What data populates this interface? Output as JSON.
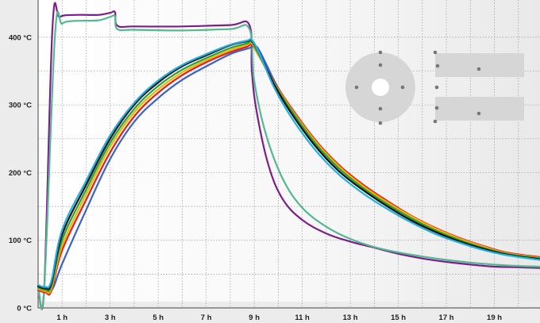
{
  "chart_data": {
    "type": "line",
    "title": "",
    "xlabel": "",
    "ylabel": "",
    "xlim": [
      0.0,
      20.9
    ],
    "ylim": [
      0,
      455
    ],
    "grid": true,
    "x_tick_labels": [
      {
        "x": 1,
        "label": "1 h"
      },
      {
        "x": 3,
        "label": "3 h"
      },
      {
        "x": 5,
        "label": "5 h"
      },
      {
        "x": 7,
        "label": "7 h"
      },
      {
        "x": 9,
        "label": "9 h"
      },
      {
        "x": 11,
        "label": "11 h"
      },
      {
        "x": 13,
        "label": "13 h"
      },
      {
        "x": 15,
        "label": "15 h"
      },
      {
        "x": 17,
        "label": "17 h"
      },
      {
        "x": 19,
        "label": "19 h"
      }
    ],
    "x_gridlines": [
      0,
      1,
      2,
      3,
      4,
      5,
      6,
      7,
      8,
      9,
      10,
      11,
      12,
      13,
      14,
      15,
      16,
      17,
      18,
      19,
      20
    ],
    "y_tick_labels": [
      {
        "y": 0,
        "label": "0 °C"
      },
      {
        "y": 100,
        "label": "100 °C"
      },
      {
        "y": 200,
        "label": "200 °C"
      },
      {
        "y": 300,
        "label": "300 °C"
      },
      {
        "y": 400,
        "label": "400 °C"
      }
    ],
    "y_gridlines": [
      0,
      50,
      100,
      150,
      200,
      250,
      300,
      350,
      400
    ],
    "series": [
      {
        "color": "#7b1f8c",
        "points": [
          [
            0,
            32
          ],
          [
            0.25,
            28
          ],
          [
            0.6,
            415
          ],
          [
            0.9,
            430
          ],
          [
            1.5,
            433
          ],
          [
            2.5,
            433
          ],
          [
            3.0,
            436
          ],
          [
            3.2,
            437
          ],
          [
            3.3,
            417
          ],
          [
            4,
            416
          ],
          [
            6,
            416
          ],
          [
            8,
            418
          ],
          [
            8.8,
            418
          ],
          [
            8.9,
            350
          ],
          [
            9.1,
            290
          ],
          [
            9.6,
            210
          ],
          [
            10.2,
            160
          ],
          [
            11,
            130
          ],
          [
            12,
            110
          ],
          [
            13,
            98
          ],
          [
            14,
            89
          ],
          [
            15,
            80
          ],
          [
            16,
            73
          ],
          [
            17,
            68
          ],
          [
            18,
            64
          ],
          [
            19,
            61
          ],
          [
            20,
            60
          ],
          [
            20.9,
            59
          ]
        ]
      },
      {
        "color": "#55b890",
        "points": [
          [
            0,
            30
          ],
          [
            0.25,
            28
          ],
          [
            0.7,
            402
          ],
          [
            1.0,
            420
          ],
          [
            1.5,
            424
          ],
          [
            2.5,
            425
          ],
          [
            3.0,
            430
          ],
          [
            3.2,
            431
          ],
          [
            3.3,
            412
          ],
          [
            4,
            411
          ],
          [
            6,
            410
          ],
          [
            8,
            412
          ],
          [
            8.8,
            412
          ],
          [
            9.0,
            335
          ],
          [
            9.5,
            255
          ],
          [
            10.2,
            190
          ],
          [
            11,
            148
          ],
          [
            12,
            120
          ],
          [
            13,
            102
          ],
          [
            14,
            90
          ],
          [
            15,
            82
          ],
          [
            16,
            76
          ],
          [
            17,
            71
          ],
          [
            18,
            67
          ],
          [
            19,
            64
          ],
          [
            20,
            62
          ],
          [
            20.9,
            61
          ]
        ]
      },
      {
        "color": "#3a5fcf",
        "points": [
          [
            0,
            28
          ],
          [
            0.3,
            24
          ],
          [
            0.6,
            28
          ],
          [
            1,
            65
          ],
          [
            2,
            145
          ],
          [
            3,
            220
          ],
          [
            4,
            275
          ],
          [
            5,
            310
          ],
          [
            6,
            337
          ],
          [
            7,
            357
          ],
          [
            8,
            375
          ],
          [
            8.6,
            382
          ],
          [
            8.8,
            384
          ],
          [
            9.1,
            386
          ],
          [
            9.5,
            360
          ],
          [
            10,
            325
          ],
          [
            11,
            270
          ],
          [
            12,
            228
          ],
          [
            13,
            195
          ],
          [
            14,
            168
          ],
          [
            15,
            145
          ],
          [
            16,
            125
          ],
          [
            17,
            109
          ],
          [
            18,
            96
          ],
          [
            19,
            86
          ],
          [
            20,
            78
          ],
          [
            20.9,
            73
          ]
        ]
      },
      {
        "color": "#e02020",
        "points": [
          [
            0,
            26
          ],
          [
            0.3,
            23
          ],
          [
            0.55,
            25
          ],
          [
            1,
            85
          ],
          [
            2,
            160
          ],
          [
            3,
            230
          ],
          [
            4,
            283
          ],
          [
            5,
            318
          ],
          [
            6,
            344
          ],
          [
            7,
            363
          ],
          [
            8,
            378
          ],
          [
            8.7,
            386
          ],
          [
            8.9,
            389
          ],
          [
            9.2,
            372
          ],
          [
            9.8,
            335
          ],
          [
            10.5,
            298
          ],
          [
            11.5,
            250
          ],
          [
            12.5,
            212
          ],
          [
            13.5,
            183
          ],
          [
            14.5,
            159
          ],
          [
            15.5,
            137
          ],
          [
            16.5,
            119
          ],
          [
            17.5,
            104
          ],
          [
            18.5,
            92
          ],
          [
            19.5,
            82
          ],
          [
            20.9,
            75
          ]
        ]
      },
      {
        "color": "#f0b400",
        "points": [
          [
            0,
            28
          ],
          [
            0.3,
            25
          ],
          [
            0.55,
            28
          ],
          [
            1,
            92
          ],
          [
            2,
            168
          ],
          [
            3,
            238
          ],
          [
            4,
            289
          ],
          [
            5,
            323
          ],
          [
            6,
            348
          ],
          [
            7,
            366
          ],
          [
            8,
            381
          ],
          [
            8.7,
            389
          ],
          [
            8.9,
            391
          ],
          [
            9.2,
            372
          ],
          [
            9.8,
            334
          ],
          [
            10.5,
            296
          ],
          [
            11.5,
            248
          ],
          [
            12.5,
            210
          ],
          [
            13.5,
            181
          ],
          [
            14.5,
            157
          ],
          [
            15.5,
            136
          ],
          [
            16.5,
            118
          ],
          [
            17.5,
            103
          ],
          [
            18.5,
            91
          ],
          [
            19.5,
            81
          ],
          [
            20.9,
            74
          ]
        ]
      },
      {
        "color": "#2a9e3a",
        "points": [
          [
            0,
            30
          ],
          [
            0.3,
            27
          ],
          [
            0.55,
            32
          ],
          [
            1,
            100
          ],
          [
            2,
            175
          ],
          [
            3,
            244
          ],
          [
            4,
            294
          ],
          [
            5,
            328
          ],
          [
            6,
            352
          ],
          [
            7,
            369
          ],
          [
            8,
            384
          ],
          [
            8.7,
            391
          ],
          [
            8.9,
            393
          ],
          [
            9.2,
            374
          ],
          [
            9.8,
            333
          ],
          [
            10.5,
            294
          ],
          [
            11.5,
            245
          ],
          [
            12.5,
            207
          ],
          [
            13.5,
            178
          ],
          [
            14.5,
            154
          ],
          [
            15.5,
            133
          ],
          [
            16.5,
            115
          ],
          [
            17.5,
            101
          ],
          [
            18.5,
            89
          ],
          [
            19.5,
            80
          ],
          [
            20.9,
            73
          ]
        ]
      },
      {
        "color": "#111111",
        "points": [
          [
            0,
            32
          ],
          [
            0.3,
            29
          ],
          [
            0.55,
            36
          ],
          [
            1,
            108
          ],
          [
            2,
            182
          ],
          [
            3,
            250
          ],
          [
            4,
            300
          ],
          [
            5,
            333
          ],
          [
            6,
            357
          ],
          [
            7,
            373
          ],
          [
            8,
            388
          ],
          [
            8.7,
            394
          ],
          [
            8.9,
            395
          ],
          [
            9.2,
            377
          ],
          [
            9.8,
            332
          ],
          [
            10.5,
            290
          ],
          [
            11.5,
            241
          ],
          [
            12.5,
            203
          ],
          [
            13.5,
            175
          ],
          [
            14.5,
            151
          ],
          [
            15.5,
            130
          ],
          [
            16.5,
            113
          ],
          [
            17.5,
            99
          ],
          [
            18.5,
            88
          ],
          [
            19.5,
            79
          ],
          [
            20.9,
            72
          ]
        ]
      },
      {
        "color": "#22b0e0",
        "points": [
          [
            0,
            34
          ],
          [
            0.3,
            31
          ],
          [
            0.55,
            40
          ],
          [
            1,
            115
          ],
          [
            2,
            188
          ],
          [
            3,
            255
          ],
          [
            4,
            303
          ],
          [
            5,
            336
          ],
          [
            6,
            359
          ],
          [
            7,
            375
          ],
          [
            8,
            389
          ],
          [
            8.7,
            395
          ],
          [
            8.9,
            396
          ],
          [
            9.2,
            377
          ],
          [
            9.8,
            328
          ],
          [
            10.5,
            284
          ],
          [
            11.5,
            235
          ],
          [
            12.5,
            198
          ],
          [
            13.5,
            170
          ],
          [
            14.5,
            147
          ],
          [
            15.5,
            127
          ],
          [
            16.5,
            110
          ],
          [
            17.5,
            97
          ],
          [
            18.5,
            86
          ],
          [
            19.5,
            78
          ],
          [
            20.9,
            71
          ]
        ]
      }
    ],
    "annotations": [
      "cross-section inset: circular sample with 7 sensor points",
      "cross-section inset: two rectangular samples with sensor points"
    ]
  }
}
